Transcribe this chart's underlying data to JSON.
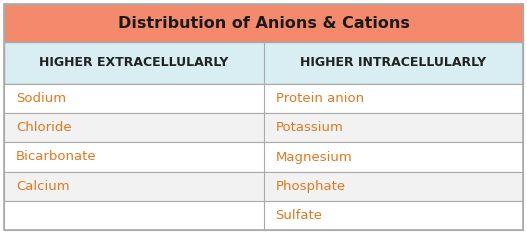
{
  "title": "Distribution of Anions & Cations",
  "title_bg": "#F4896B",
  "header_bg": "#D8EEF2",
  "row_bg": "#F5F5F5",
  "header_col1": "Higher Extracellularly",
  "header_col2": "Higher Intracellularly",
  "header_text_color": "#222222",
  "cell_text_color": "#E07820",
  "border_color": "#AAAAAA",
  "col1_data": [
    "Sodium",
    "Chloride",
    "Bicarbonate",
    "Calcium",
    ""
  ],
  "col2_data": [
    "Protein anion",
    "Potassium",
    "Magnesium",
    "Phosphate",
    "Sulfate"
  ],
  "title_fontsize": 11.5,
  "header_fontsize": 9.0,
  "cell_fontsize": 9.5,
  "fig_width": 5.27,
  "fig_height": 2.34,
  "outer_border_color": "#AAAAAA"
}
